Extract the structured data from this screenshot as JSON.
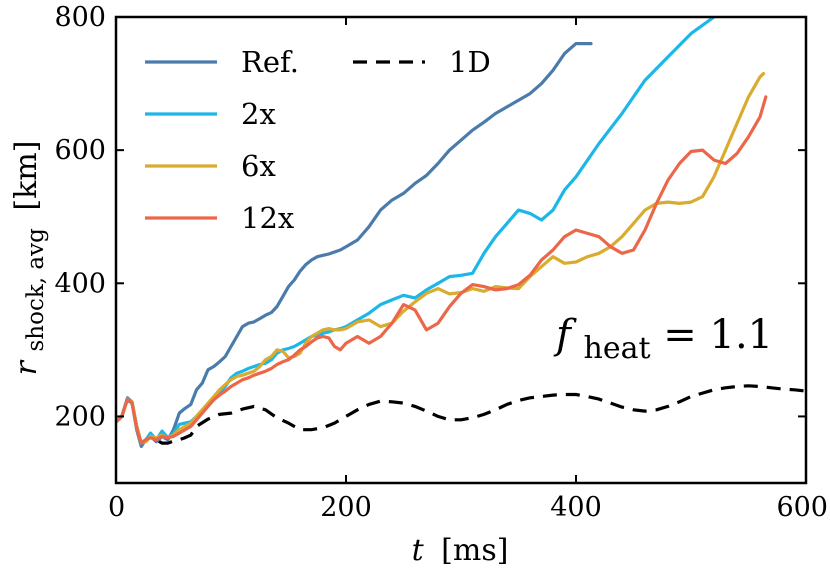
{
  "chart_data": {
    "type": "line",
    "xlim": [
      0,
      600
    ],
    "ylim": [
      100,
      800
    ],
    "xticks": [
      0,
      200,
      400,
      600
    ],
    "yticks": [
      200,
      400,
      600,
      800
    ],
    "xlabel": {
      "var": "t",
      "unit": "[ms]"
    },
    "ylabel": {
      "var": "r",
      "sub": "shock, avg",
      "unit": "[km]"
    },
    "annotation": {
      "var": "f",
      "sub": "heat",
      "rest": " = 1.1"
    },
    "legend": {
      "location": "top-left",
      "columns": 2
    },
    "series": [
      {
        "name": "Ref.",
        "color": "#4a7bab",
        "dash": "",
        "x": [
          0,
          5,
          10,
          14,
          18,
          22,
          26,
          30,
          35,
          40,
          45,
          50,
          55,
          60,
          65,
          70,
          75,
          80,
          85,
          90,
          95,
          100,
          105,
          110,
          115,
          120,
          125,
          130,
          135,
          140,
          145,
          150,
          155,
          160,
          165,
          170,
          175,
          180,
          185,
          190,
          195,
          200,
          210,
          220,
          230,
          240,
          250,
          260,
          270,
          280,
          290,
          300,
          310,
          320,
          330,
          340,
          350,
          360,
          370,
          380,
          390,
          400,
          410,
          413
        ],
        "y": [
          192,
          200,
          228,
          220,
          180,
          155,
          165,
          170,
          162,
          170,
          165,
          180,
          205,
          212,
          218,
          240,
          250,
          270,
          275,
          282,
          290,
          305,
          320,
          335,
          340,
          342,
          347,
          352,
          356,
          365,
          380,
          395,
          405,
          418,
          428,
          435,
          440,
          442,
          444,
          447,
          450,
          455,
          465,
          485,
          510,
          525,
          535,
          550,
          562,
          580,
          600,
          615,
          630,
          642,
          655,
          665,
          675,
          685,
          700,
          720,
          745,
          760,
          760,
          760
        ]
      },
      {
        "name": "2x",
        "color": "#1cb7e8",
        "dash": "",
        "x": [
          0,
          5,
          10,
          14,
          18,
          22,
          26,
          30,
          35,
          40,
          45,
          50,
          55,
          60,
          65,
          70,
          75,
          80,
          85,
          90,
          95,
          100,
          105,
          110,
          115,
          120,
          125,
          130,
          135,
          140,
          145,
          150,
          155,
          160,
          165,
          170,
          175,
          180,
          185,
          190,
          195,
          200,
          210,
          220,
          230,
          240,
          250,
          260,
          270,
          280,
          290,
          300,
          310,
          320,
          330,
          340,
          350,
          360,
          370,
          380,
          390,
          400,
          420,
          440,
          460,
          480,
          500,
          520
        ],
        "y": [
          192,
          200,
          228,
          222,
          185,
          160,
          165,
          175,
          165,
          178,
          168,
          175,
          188,
          190,
          192,
          200,
          210,
          218,
          225,
          235,
          245,
          258,
          265,
          268,
          272,
          275,
          278,
          280,
          285,
          295,
          300,
          302,
          305,
          310,
          315,
          320,
          322,
          325,
          327,
          330,
          332,
          335,
          345,
          355,
          368,
          375,
          382,
          378,
          390,
          400,
          410,
          412,
          415,
          445,
          470,
          490,
          510,
          505,
          495,
          510,
          540,
          560,
          610,
          655,
          705,
          740,
          775,
          800
        ]
      },
      {
        "name": "6x",
        "color": "#d9ab2e",
        "dash": "",
        "x": [
          0,
          5,
          10,
          14,
          18,
          22,
          26,
          30,
          35,
          40,
          45,
          50,
          55,
          60,
          65,
          70,
          75,
          80,
          85,
          90,
          95,
          100,
          105,
          110,
          115,
          120,
          125,
          130,
          135,
          140,
          145,
          150,
          155,
          160,
          165,
          170,
          175,
          180,
          185,
          190,
          195,
          200,
          210,
          220,
          230,
          240,
          250,
          260,
          270,
          280,
          290,
          300,
          310,
          320,
          330,
          340,
          350,
          360,
          370,
          380,
          390,
          400,
          410,
          420,
          430,
          440,
          450,
          460,
          470,
          480,
          490,
          500,
          510,
          520,
          530,
          540,
          550,
          560,
          563
        ],
        "y": [
          192,
          200,
          225,
          222,
          185,
          160,
          162,
          170,
          168,
          172,
          168,
          172,
          180,
          185,
          190,
          200,
          210,
          220,
          230,
          240,
          248,
          255,
          260,
          262,
          265,
          268,
          275,
          285,
          290,
          300,
          298,
          288,
          290,
          295,
          310,
          320,
          325,
          330,
          332,
          330,
          330,
          332,
          342,
          345,
          335,
          340,
          358,
          372,
          385,
          392,
          384,
          386,
          392,
          388,
          395,
          393,
          392,
          410,
          425,
          440,
          430,
          432,
          440,
          445,
          455,
          470,
          490,
          510,
          520,
          522,
          520,
          522,
          530,
          560,
          600,
          640,
          680,
          710,
          715
        ]
      },
      {
        "name": "12x",
        "color": "#ec6649",
        "dash": "",
        "x": [
          0,
          5,
          10,
          14,
          18,
          22,
          26,
          30,
          35,
          40,
          45,
          50,
          55,
          60,
          65,
          70,
          75,
          80,
          85,
          90,
          95,
          100,
          105,
          110,
          115,
          120,
          125,
          130,
          135,
          140,
          145,
          150,
          155,
          160,
          165,
          170,
          175,
          180,
          185,
          190,
          195,
          200,
          210,
          220,
          230,
          240,
          250,
          260,
          270,
          280,
          290,
          300,
          310,
          320,
          330,
          340,
          350,
          360,
          370,
          380,
          390,
          400,
          410,
          420,
          430,
          440,
          450,
          460,
          470,
          480,
          490,
          500,
          510,
          520,
          530,
          540,
          550,
          560,
          565
        ],
        "y": [
          192,
          200,
          226,
          220,
          182,
          160,
          165,
          168,
          165,
          170,
          168,
          170,
          175,
          180,
          185,
          195,
          205,
          215,
          225,
          232,
          238,
          245,
          250,
          255,
          258,
          262,
          265,
          268,
          272,
          278,
          282,
          285,
          292,
          300,
          305,
          312,
          318,
          320,
          318,
          305,
          300,
          310,
          320,
          310,
          320,
          340,
          368,
          360,
          330,
          340,
          365,
          385,
          398,
          395,
          390,
          392,
          398,
          412,
          435,
          450,
          470,
          480,
          475,
          470,
          455,
          445,
          450,
          480,
          520,
          555,
          580,
          598,
          600,
          585,
          580,
          595,
          620,
          650,
          680
        ]
      },
      {
        "name": "1D",
        "color": "#000000",
        "dash": "14,9",
        "x": [
          0,
          5,
          10,
          14,
          18,
          22,
          26,
          30,
          35,
          40,
          45,
          50,
          55,
          60,
          65,
          70,
          80,
          90,
          100,
          110,
          120,
          130,
          140,
          150,
          160,
          170,
          180,
          190,
          200,
          210,
          220,
          230,
          240,
          250,
          260,
          270,
          280,
          290,
          300,
          310,
          320,
          330,
          340,
          350,
          360,
          370,
          380,
          390,
          400,
          410,
          420,
          430,
          440,
          450,
          460,
          470,
          480,
          490,
          500,
          510,
          520,
          530,
          540,
          550,
          560,
          570,
          580,
          590,
          600
        ],
        "y": [
          192,
          200,
          225,
          220,
          185,
          160,
          165,
          168,
          165,
          160,
          160,
          163,
          165,
          168,
          172,
          185,
          196,
          203,
          205,
          211,
          215,
          210,
          198,
          190,
          180,
          180,
          183,
          190,
          200,
          210,
          218,
          223,
          222,
          220,
          215,
          208,
          200,
          195,
          195,
          198,
          203,
          210,
          218,
          224,
          228,
          230,
          232,
          233,
          233,
          230,
          226,
          220,
          214,
          210,
          208,
          210,
          215,
          222,
          230,
          235,
          240,
          243,
          245,
          246,
          245,
          243,
          241,
          240,
          238
        ]
      }
    ]
  }
}
